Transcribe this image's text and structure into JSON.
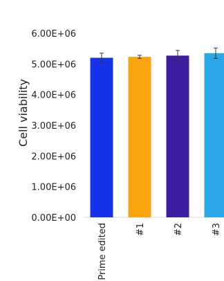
{
  "chart_data": {
    "type": "bar",
    "ylabel": "Cell viability",
    "xlabel": "",
    "ylim": [
      0,
      6000000
    ],
    "yticks": [
      {
        "value": 0,
        "label": "0.00E+00"
      },
      {
        "value": 1000000,
        "label": "1.00E+06"
      },
      {
        "value": 2000000,
        "label": "2.00E+06"
      },
      {
        "value": 3000000,
        "label": "3.00E+06"
      },
      {
        "value": 4000000,
        "label": "4.00E+06"
      },
      {
        "value": 5000000,
        "label": "5.00E+06"
      },
      {
        "value": 6000000,
        "label": "6.00E+06"
      }
    ],
    "categories": [
      "Prime edited",
      "#1",
      "#2",
      "#3"
    ],
    "values": [
      5200000,
      5230000,
      5270000,
      5350000
    ],
    "errors": [
      150000,
      50000,
      170000,
      170000
    ],
    "colors": [
      "#1733ea",
      "#f9a50f",
      "#3b1fa0",
      "#2aa7e6"
    ],
    "grid": false,
    "legend": "none"
  }
}
